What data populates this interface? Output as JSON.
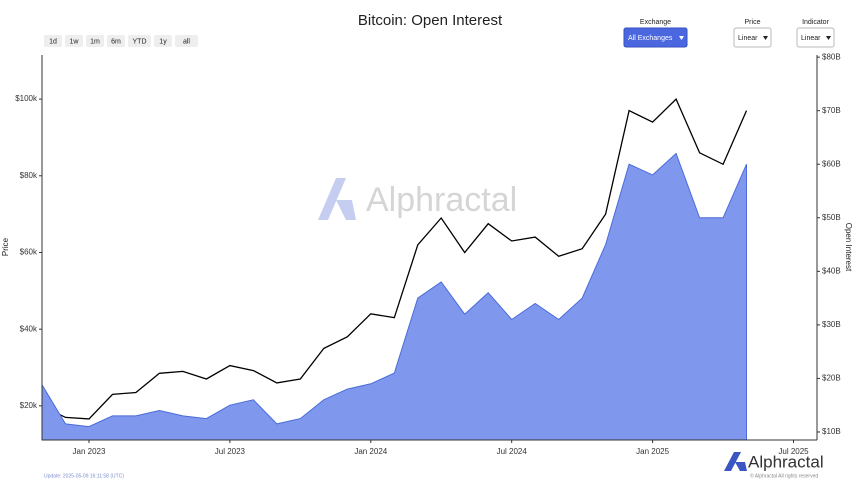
{
  "chart_data": {
    "type": "line",
    "title": "Bitcoin: Open Interest",
    "ylabel": "Price",
    "y2label": "Open Interest",
    "x": [
      "2022-11",
      "2022-12",
      "2023-01",
      "2023-02",
      "2023-03",
      "2023-04",
      "2023-05",
      "2023-06",
      "2023-07",
      "2023-08",
      "2023-09",
      "2023-10",
      "2023-11",
      "2023-12",
      "2024-01",
      "2024-02",
      "2024-03",
      "2024-04",
      "2024-05",
      "2024-06",
      "2024-07",
      "2024-08",
      "2024-09",
      "2024-10",
      "2024-11",
      "2024-12",
      "2025-01",
      "2025-02",
      "2025-03",
      "2025-04",
      "2025-05"
    ],
    "series": [
      {
        "color": "#000000",
        "values": [
          20000,
          17000,
          16600,
          23000,
          23500,
          28500,
          29000,
          27000,
          30500,
          29200,
          26000,
          27000,
          35000,
          38000,
          44000,
          43000,
          62000,
          69000,
          60000,
          67500,
          63000,
          64000,
          59000,
          61000,
          70000,
          97000,
          94000,
          100000,
          86000,
          83000,
          97000
        ]
      },
      {
        "color": "#7f98ee",
        "line_color": "#4a6bd8",
        "area": true,
        "axis": "y2",
        "values": [
          18.8,
          11.5,
          11,
          13,
          13,
          14,
          13,
          12.5,
          15,
          16,
          11.5,
          12.5,
          16,
          18,
          19,
          21,
          35,
          38,
          32,
          36,
          31,
          34,
          31,
          35,
          45,
          60,
          58,
          62,
          50,
          50,
          60
        ]
      }
    ],
    "xlim": [
      "2022-11",
      "2025-08"
    ],
    "xticks": [
      {
        "value": "2023-01",
        "label": "Jan 2023"
      },
      {
        "value": "2023-07",
        "label": "Jul 2023"
      },
      {
        "value": "2024-01",
        "label": "Jan 2024"
      },
      {
        "value": "2024-07",
        "label": "Jul 2024"
      },
      {
        "value": "2025-01",
        "label": "Jan 2025"
      },
      {
        "value": "2025-07",
        "label": "Jul 2025"
      }
    ],
    "ylim": [
      11100,
      111500
    ],
    "yticks": [
      {
        "value": 20000,
        "label": "$20k"
      },
      {
        "value": 40000,
        "label": "$40k"
      },
      {
        "value": 60000,
        "label": "$60k"
      },
      {
        "value": 80000,
        "label": "$80k"
      },
      {
        "value": 100000,
        "label": "$100k"
      }
    ],
    "y2lim": [
      8.5,
      80.4
    ],
    "y2ticks": [
      {
        "value": 10,
        "label": "$10B"
      },
      {
        "value": 20,
        "label": "$20B"
      },
      {
        "value": 30,
        "label": "$30B"
      },
      {
        "value": 40,
        "label": "$40B"
      },
      {
        "value": 50,
        "label": "$50B"
      },
      {
        "value": 60,
        "label": "$60B"
      },
      {
        "value": 70,
        "label": "$70B"
      },
      {
        "value": 80,
        "label": "$80B"
      }
    ],
    "grid": false
  },
  "ui": {
    "ranges": [
      "1d",
      "1w",
      "1m",
      "6m",
      "YTD",
      "1y",
      "all"
    ],
    "dropdowns": [
      {
        "label": "Exchange",
        "value": "All Exchanges"
      },
      {
        "label": "Price",
        "value": "Linear"
      },
      {
        "label": "Indicator",
        "value": "Linear"
      }
    ],
    "watermark": "Alphractal",
    "brand": "Alphractal",
    "update": "Update: 2025-05-09 16:11:58 (UTC)",
    "rights": "© Alphractal All rights reserved"
  }
}
